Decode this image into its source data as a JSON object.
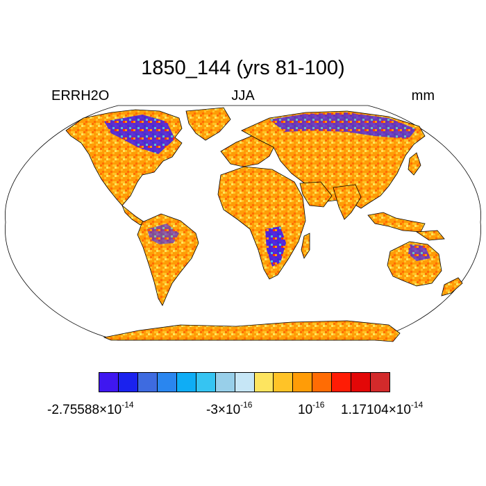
{
  "title": "1850_144 (yrs 81-100)",
  "left_string": "ERRH2O",
  "center_string": "JJA",
  "right_string": "mm",
  "projection": "Robinson",
  "colorbar": {
    "colors": [
      "#3f17f0",
      "#1a22ee",
      "#3e6be0",
      "#2a86ef",
      "#0fadf5",
      "#36c4f2",
      "#98cfe9",
      "#c6e6f6",
      "#fde45f",
      "#ffc327",
      "#ff9c07",
      "#ff6c04",
      "#ff1c05",
      "#e30707",
      "#d32a2b"
    ],
    "labels": [
      {
        "mantissa": "-2.75588",
        "exponent": "-14"
      },
      {
        "mantissa": "-3",
        "exponent": "-16"
      },
      {
        "mantissa": "",
        "exponent": "-16"
      },
      {
        "mantissa": "1.17104",
        "exponent": "-14"
      }
    ]
  }
}
